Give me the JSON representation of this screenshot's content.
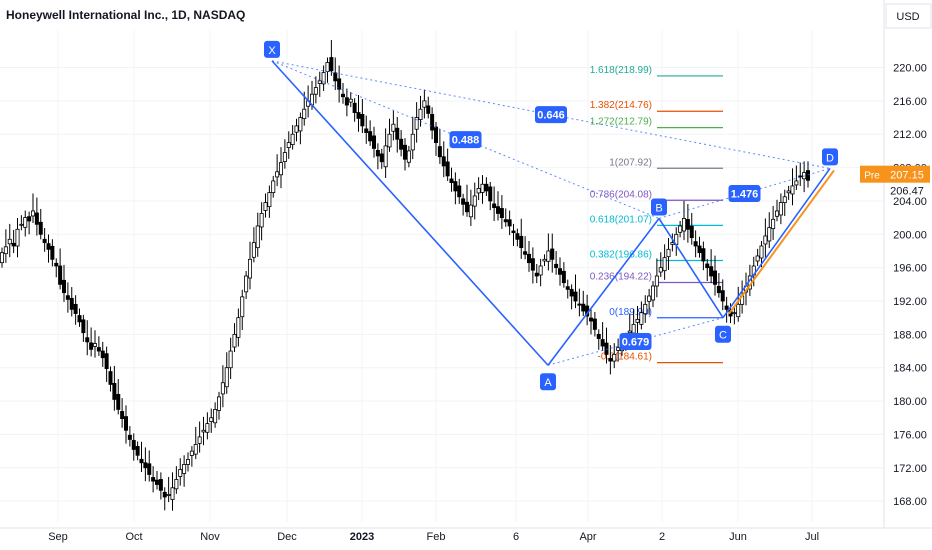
{
  "header": {
    "title": "Honeywell International Inc., 1D, NASDAQ"
  },
  "price_axis": {
    "currency": "USD",
    "tick_labels": [
      "220.00",
      "216.00",
      "212.00",
      "208.00",
      "204.00",
      "200.00",
      "196.00",
      "192.00",
      "188.00",
      "184.00",
      "180.00",
      "176.00",
      "172.00",
      "168.00"
    ],
    "pre_label": "Pre",
    "pre_value": "207.15",
    "last_value": "206.47"
  },
  "time_axis": {
    "tick_labels": [
      "Sep",
      "Oct",
      "Nov",
      "Dec",
      "2023",
      "Feb",
      "6",
      "Apr",
      "2",
      "Jun",
      "Jul"
    ]
  },
  "colors": {
    "up_candle": "#ffffff",
    "down_candle": "#000000",
    "pattern_line": "#2962ff",
    "orange": "#f7931a",
    "fib_1618": "#22ab94",
    "fib_1382": "#f7525f",
    "fib_1272": "#4caf50"
  },
  "chart_data": {
    "type": "candlestick",
    "title": "Honeywell International Inc., 1D, NASDAQ",
    "ylim": [
      165.5,
      224.5
    ],
    "y_ticks": [
      220,
      216,
      212,
      208,
      204,
      200,
      196,
      192,
      188,
      184,
      180,
      176,
      172,
      168
    ],
    "x_ticks": [
      "Sep",
      "Oct",
      "Nov",
      "Dec",
      "2023",
      "Feb",
      "6",
      "Apr",
      "2",
      "Jun",
      "Jul"
    ],
    "harmonic_points": [
      {
        "label": "X",
        "date": "Nov 30 2022",
        "price": 220.8
      },
      {
        "label": "A",
        "date": "Mar 13 2023",
        "price": 184.3
      },
      {
        "label": "B",
        "date": "Apr 28 2023",
        "price": 201.9
      },
      {
        "label": "C",
        "date": "May 31 2023",
        "price": 190.0
      },
      {
        "label": "D",
        "date": "Jul 12 2023",
        "price": 207.9
      }
    ],
    "ratio_labels": [
      "0.488",
      "0.646",
      "0.679",
      "1.476"
    ],
    "fib_levels": [
      {
        "label": "1.618(218.99)",
        "price": 218.99,
        "color": "#22ab94"
      },
      {
        "label": "1.382(214.76)",
        "price": 214.76,
        "color": "#e65100"
      },
      {
        "label": "1.272(212.79)",
        "price": 212.79,
        "color": "#4caf50"
      },
      {
        "label": "1(207.92)",
        "price": 207.92,
        "color": "#787b86"
      },
      {
        "label": "0.786(204.08)",
        "price": 204.08,
        "color": "#7e57c2"
      },
      {
        "label": "0.618(201.07)",
        "price": 201.07,
        "color": "#00bcd4"
      },
      {
        "label": "0.382(196.86)",
        "price": 196.86,
        "color": "#00bcd4"
      },
      {
        "label": "0.236(194.22)",
        "price": 194.22,
        "color": "#7e57c2"
      },
      {
        "label": "0(189.99)",
        "price": 189.99,
        "color": "#2962ff"
      },
      {
        "label": "-0.3(184.61)",
        "price": 184.61,
        "color": "#e65100"
      }
    ],
    "closes": [
      197.8,
      198.5,
      199.4,
      198.6,
      200.6,
      201.2,
      202.0,
      201.6,
      202.8,
      201.2,
      200.0,
      199.0,
      198.2,
      197.0,
      196.2,
      194.0,
      193.0,
      192.2,
      191.0,
      190.5,
      189.5,
      188.2,
      187.1,
      186.2,
      186.9,
      186.0,
      185.2,
      183.9,
      182.0,
      180.2,
      179.0,
      177.9,
      176.5,
      175.4,
      174.2,
      173.5,
      172.6,
      172.0,
      171.2,
      170.4,
      170.0,
      169.3,
      168.5,
      168.8,
      169.6,
      170.6,
      171.8,
      172.4,
      173.0,
      174.0,
      174.8,
      175.7,
      176.5,
      177.3,
      178.0,
      179.0,
      180.5,
      182.2,
      184.0,
      186.0,
      188.0,
      190.0,
      192.5,
      195.0,
      197.0,
      199.0,
      201.0,
      202.5,
      203.8,
      205.0,
      206.4,
      207.5,
      208.6,
      209.8,
      211.0,
      212.0,
      213.0,
      214.0,
      215.0,
      216.0,
      216.8,
      217.6,
      218.4,
      219.4,
      220.6,
      219.6,
      218.4,
      217.4,
      216.5,
      215.5,
      216.2,
      214.6,
      213.9,
      213.0,
      212.2,
      211.2,
      210.3,
      209.4,
      208.7,
      210.6,
      212.0,
      213.2,
      211.4,
      210.2,
      209.0,
      210.0,
      212.0,
      214.0,
      215.0,
      216.0,
      214.5,
      212.5,
      211.0,
      209.3,
      208.2,
      207.0,
      206.2,
      205.2,
      204.5,
      203.6,
      202.7,
      203.5,
      204.6,
      205.5,
      206.0,
      205.2,
      204.0,
      203.2,
      202.5,
      202.0,
      201.5,
      201.0,
      200.2,
      199.4,
      198.4,
      197.6,
      196.6,
      195.7,
      195.0,
      196.2,
      197.0,
      198.0,
      197.0,
      196.0,
      195.2,
      194.2,
      193.4,
      192.6,
      192.0,
      191.5,
      190.8,
      190.2,
      189.6,
      188.6,
      187.5,
      186.6,
      185.6,
      184.8,
      185.6,
      186.4,
      187.0,
      187.6,
      188.4,
      189.2,
      189.8,
      190.6,
      191.6,
      192.6,
      193.8,
      195.0,
      196.0,
      197.2,
      198.2,
      199.0,
      200.0,
      201.0,
      201.9,
      200.6,
      199.6,
      198.6,
      197.8,
      196.8,
      196.0,
      195.0,
      194.0,
      193.0,
      192.0,
      191.0,
      190.2,
      190.6,
      191.6,
      192.6,
      193.8,
      195.0,
      196.2,
      197.4,
      198.6,
      199.8,
      200.8,
      201.8,
      202.8,
      203.8,
      204.5,
      205.2,
      205.8,
      206.4,
      206.9,
      207.4,
      206.47
    ]
  }
}
